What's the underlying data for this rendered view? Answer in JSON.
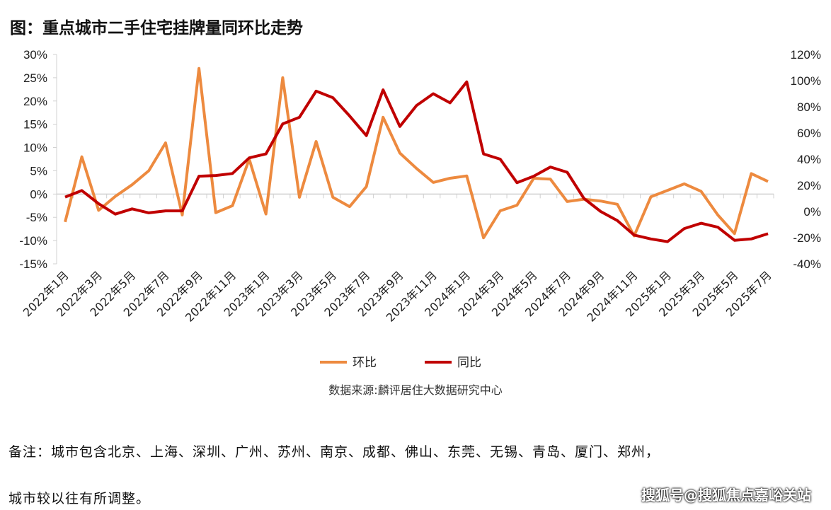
{
  "chart_data": {
    "type": "line",
    "title": "图：重点城市二手住宅挂牌量同环比走势",
    "x": [
      "2022年1月",
      "2022年2月",
      "2022年3月",
      "2022年4月",
      "2022年5月",
      "2022年6月",
      "2022年7月",
      "2022年8月",
      "2022年9月",
      "2022年10月",
      "2022年11月",
      "2022年12月",
      "2023年1月",
      "2023年2月",
      "2023年3月",
      "2023年4月",
      "2023年5月",
      "2023年6月",
      "2023年7月",
      "2023年8月",
      "2023年9月",
      "2023年10月",
      "2023年11月",
      "2023年12月",
      "2024年1月",
      "2024年2月",
      "2024年3月",
      "2024年4月",
      "2024年5月",
      "2024年6月",
      "2024年7月",
      "2024年8月",
      "2024年9月",
      "2024年10月",
      "2024年11月",
      "2024年12月",
      "2025年1月",
      "2025年2月",
      "2025年3月",
      "2025年4月",
      "2025年5月",
      "2025年6月",
      "2025年7月"
    ],
    "xtick_labels": [
      "2022年1月",
      "2022年3月",
      "2022年5月",
      "2022年7月",
      "2022年9月",
      "2022年11月",
      "2023年1月",
      "2023年3月",
      "2023年5月",
      "2023年7月",
      "2023年9月",
      "2023年11月",
      "2024年1月",
      "2024年3月",
      "2024年5月",
      "2024年7月",
      "2024年9月",
      "2024年11月",
      "2025年1月",
      "2025年3月",
      "2025年5月",
      "2025年7月"
    ],
    "series": [
      {
        "name": "环比",
        "axis": "left",
        "color": "#ED8A3F",
        "values": [
          -6,
          8,
          -3.5,
          -0.5,
          2,
          5,
          11,
          -4.5,
          27,
          -4,
          -2.5,
          7.5,
          -4.3,
          25,
          -0.7,
          11.3,
          -0.7,
          -2.7,
          1.6,
          16.5,
          8.8,
          5.5,
          2.5,
          3.4,
          3.9,
          -9.4,
          -3.6,
          -2.4,
          3.4,
          3.2,
          -1.6,
          -1.1,
          -1.5,
          -2.2,
          -9,
          -0.6,
          0.8,
          2.2,
          0.6,
          -4.5,
          -8.5,
          4.4,
          2.7
        ]
      },
      {
        "name": "同比",
        "axis": "right",
        "color": "#C00000",
        "values": [
          11,
          16,
          6,
          -2,
          2,
          -1,
          0.5,
          0.5,
          27,
          27.5,
          29,
          41,
          44,
          67,
          72,
          92,
          87,
          73,
          58,
          93,
          65,
          81,
          90,
          83,
          99,
          44,
          40,
          22,
          27,
          34,
          30,
          10,
          0,
          -7,
          -18,
          -21,
          -23,
          -13,
          -9,
          -12,
          -22,
          -21,
          -17
        ]
      }
    ],
    "ylim_left": [
      -15,
      30
    ],
    "yticks_left": [
      "30%",
      "25%",
      "20%",
      "15%",
      "10%",
      "5%",
      "0%",
      "-5%",
      "-10%",
      "-15%"
    ],
    "ylim_right": [
      -40,
      120
    ],
    "yticks_right": [
      "120%",
      "100%",
      "80%",
      "60%",
      "40%",
      "20%",
      "0%",
      "-20%",
      "-40%"
    ],
    "grid": false,
    "legend": "bottom"
  },
  "source": "数据来源:麟评居住大数据研究中心",
  "note_line1": "备注：城市包含北京、上海、深圳、广州、苏州、南京、成都、佛山、东莞、无锡、青岛、厦门、郑州，",
  "note_line2": "城市较以往有所调整。",
  "watermark": "搜狐号@搜狐焦点嘉峪关站"
}
